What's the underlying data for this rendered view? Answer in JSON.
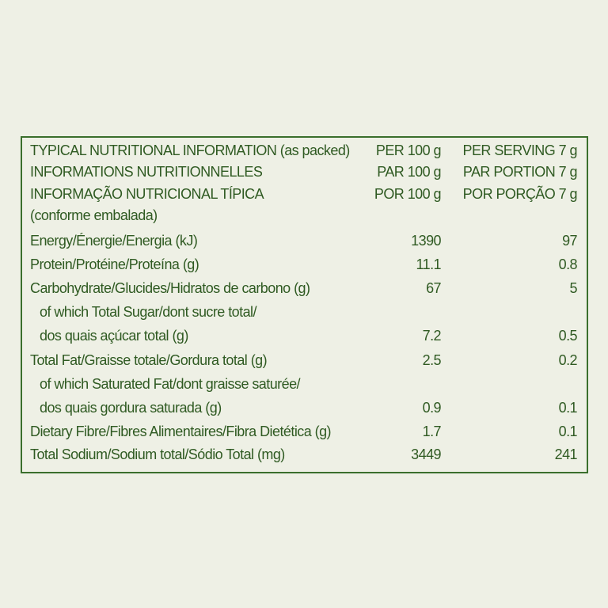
{
  "header": {
    "rows": [
      [
        "TYPICAL NUTRITIONAL INFORMATION (as packed)",
        "PER 100 g",
        "PER SERVING 7 g"
      ],
      [
        "INFORMATIONS NUTRITIONNELLES",
        "PAR 100 g",
        "PAR PORTION 7 g"
      ],
      [
        "INFORMAÇÃO NUTRICIONAL TÍPICA",
        "POR 100 g",
        "POR PORÇÃO 7 g"
      ]
    ],
    "note": "(conforme embalada)"
  },
  "rows": [
    {
      "label": [
        "Energy/Énergie/Energia (kJ)"
      ],
      "per_100g": 1390,
      "per_serving": 97
    },
    {
      "label": [
        "Protein/Protéine/Proteína (g)"
      ],
      "per_100g": 11.1,
      "per_serving": 0.8
    },
    {
      "label": [
        "Carbohydrate/Glucides/Hidratos de carbono (g)"
      ],
      "per_100g": 67,
      "per_serving": 5
    },
    {
      "label": [
        "of which Total Sugar/dont sucre total/",
        "dos quais açúcar total (g)"
      ],
      "per_100g": 7.2,
      "per_serving": 0.5
    },
    {
      "label": [
        "Total Fat/Graisse totale/Gordura total (g)"
      ],
      "per_100g": 2.5,
      "per_serving": 0.2
    },
    {
      "label": [
        "of which Saturated Fat/dont graisse saturée/",
        "dos quais gordura saturada (g)"
      ],
      "per_100g": 0.9,
      "per_serving": 0.1
    },
    {
      "label": [
        "Dietary Fibre/Fibres Alimentaires/Fibra Dietética (g)"
      ],
      "per_100g": 1.7,
      "per_serving": 0.1
    },
    {
      "label": [
        "Total Sodium/Sodium total/Sódio Total (mg)"
      ],
      "per_100g": 3449,
      "per_serving": 241
    }
  ]
}
